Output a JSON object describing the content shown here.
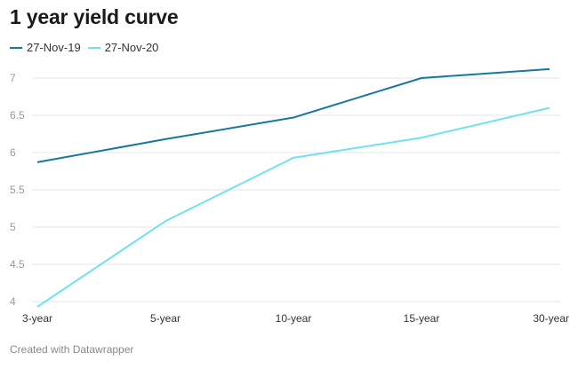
{
  "chart_data": {
    "type": "line",
    "title": "1 year yield curve",
    "categories": [
      "3-year",
      "5-year",
      "10-year",
      "15-year",
      "30-year"
    ],
    "series": [
      {
        "name": "27-Nov-19",
        "color": "#15799b",
        "values": [
          5.87,
          6.18,
          6.47,
          7.0,
          7.12
        ]
      },
      {
        "name": "27-Nov-20",
        "color": "#6fe2ef",
        "values": [
          3.93,
          5.08,
          5.93,
          6.2,
          6.6
        ]
      }
    ],
    "yticks": [
      {
        "value": 4,
        "label": "4"
      },
      {
        "value": 4.5,
        "label": "4.5"
      },
      {
        "value": 5,
        "label": "5"
      },
      {
        "value": 5.5,
        "label": "5.5"
      },
      {
        "value": 6,
        "label": "6"
      },
      {
        "value": 6.5,
        "label": "6.5"
      },
      {
        "value": 7,
        "label": "7"
      }
    ],
    "ylim": [
      3.9,
      7.2
    ],
    "grid": true,
    "legend": "top-left",
    "xlabel": "",
    "ylabel": ""
  },
  "footer": "Created with Datawrapper"
}
